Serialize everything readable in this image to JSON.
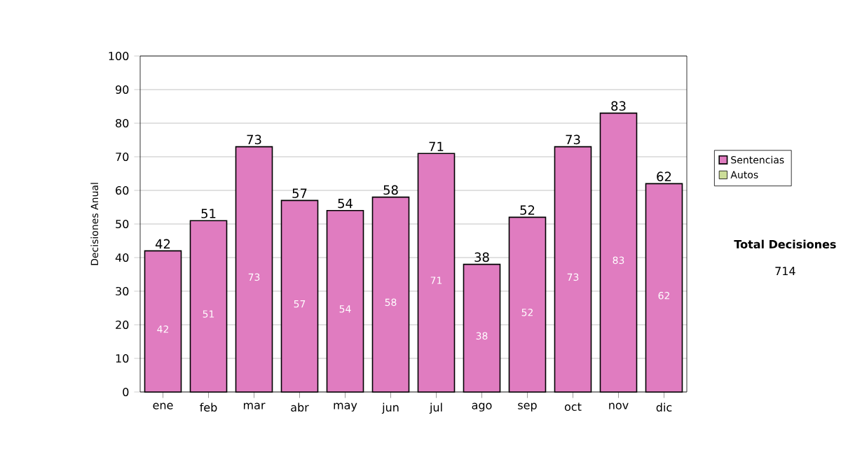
{
  "chart_data": {
    "type": "bar",
    "stacked": true,
    "ylabel": "Decisiones Anual",
    "categories": [
      "ene",
      "feb",
      "mar",
      "abr",
      "may",
      "jun",
      "jul",
      "ago",
      "sep",
      "oct",
      "nov",
      "dic"
    ],
    "series": [
      {
        "name": "Sentencias",
        "color": "#e07cc0",
        "values": [
          42,
          51,
          73,
          57,
          54,
          58,
          71,
          38,
          52,
          73,
          83,
          62
        ]
      },
      {
        "name": "Autos",
        "color": "#ccdd99",
        "values": [
          null,
          null,
          null,
          null,
          null,
          null,
          null,
          null,
          null,
          null,
          null,
          null
        ]
      }
    ],
    "data_labels": true,
    "totals": [
      "42",
      "51",
      "73",
      "57",
      "54",
      "58",
      "71",
      "38",
      "52",
      "73",
      "83",
      "62"
    ],
    "ylim": [
      0,
      100
    ],
    "yticks": [
      0,
      10,
      20,
      30,
      40,
      50,
      60,
      70,
      80,
      90,
      100
    ],
    "grid": "y",
    "legend": "right",
    "annotations": [
      "**Total Decisiones**",
      "714"
    ]
  }
}
